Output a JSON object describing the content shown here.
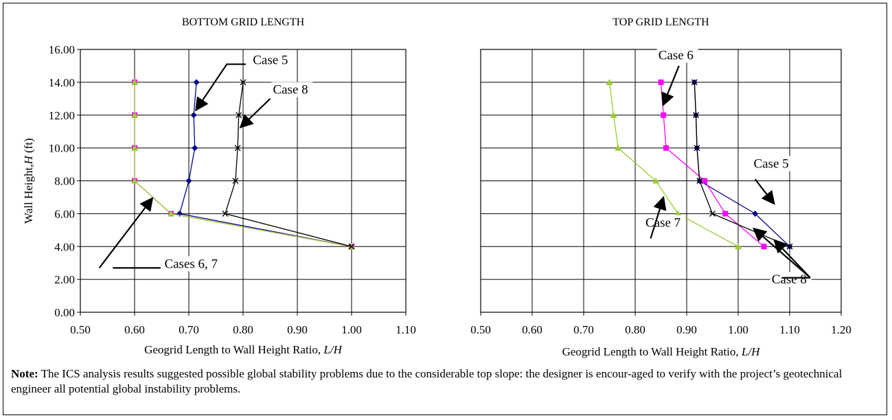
{
  "note": {
    "label": "Note:",
    "text": "The ICS analysis results suggested possible global stability problems due to the considerable top slope: the designer is encour-aged to verify with the project’s geotechnical engineer all potential global instability problems."
  },
  "chart_data": [
    {
      "type": "line",
      "title": "BOTTOM GRID LENGTH",
      "xlabel": "Geogrid Length to Wall Height Ratio, L/H",
      "ylabel": "Wall Height,H (ft)",
      "xlim": [
        0.5,
        1.1
      ],
      "ylim": [
        0,
        16
      ],
      "xticks": [
        "0.50",
        "0.60",
        "0.70",
        "0.80",
        "0.90",
        "1.00",
        "1.10"
      ],
      "yticks": [
        "0.00",
        "2.00",
        "4.00",
        "6.00",
        "8.00",
        "10.00",
        "12.00",
        "14.00",
        "16.00"
      ],
      "grid": true,
      "series": [
        {
          "color": "#00008b",
          "marker": "diamond",
          "points": [
            [
              1.0,
              4
            ],
            [
              0.683,
              6
            ],
            [
              0.7,
              8
            ],
            [
              0.711,
              10
            ],
            [
              0.709,
              12
            ],
            [
              0.714,
              14
            ]
          ]
        },
        {
          "color": "#ff00ff",
          "marker": "square",
          "points": [
            [
              1.0,
              4
            ],
            [
              0.667,
              6
            ],
            [
              0.6,
              8
            ],
            [
              0.6,
              10
            ],
            [
              0.6,
              12
            ],
            [
              0.6,
              14
            ]
          ]
        },
        {
          "color": "#9acd32",
          "marker": "triangle",
          "points": [
            [
              1.0,
              4
            ],
            [
              0.667,
              6
            ],
            [
              0.6,
              8
            ],
            [
              0.6,
              10
            ],
            [
              0.6,
              12
            ],
            [
              0.6,
              14
            ]
          ]
        },
        {
          "color": "#000000",
          "marker": "x",
          "points": [
            [
              1.0,
              4
            ],
            [
              0.767,
              6
            ],
            [
              0.786,
              8
            ],
            [
              0.79,
              10
            ],
            [
              0.792,
              12
            ],
            [
              0.8,
              14
            ]
          ]
        }
      ],
      "annotations": [
        {
          "text": "Case 5",
          "text_at": [
            0.818,
            15.1
          ],
          "line": [
            [
              0.805,
              15.1
            ],
            [
              0.77,
              15.1
            ],
            [
              0.713,
              12.3
            ]
          ]
        },
        {
          "text": "Case 8",
          "text_at": [
            0.855,
            13.3
          ],
          "line": [
            [
              0.85,
              13.0
            ],
            [
              0.795,
              11.25
            ]
          ]
        },
        {
          "text": "Cases 6, 7",
          "text_at": [
            0.655,
            2.7
          ],
          "line": [
            [
              0.648,
              2.7
            ],
            [
              0.56,
              2.7
            ],
            [
              0.535,
              2.7
            ],
            [
              0.633,
              6.95
            ]
          ]
        }
      ]
    },
    {
      "type": "line",
      "title": "TOP GRID LENGTH",
      "xlabel": "Geogrid Length to Wall Height Ratio, L/H",
      "ylabel": "",
      "xlim": [
        0.5,
        1.2
      ],
      "ylim": [
        0,
        16
      ],
      "xticks": [
        "0.50",
        "0.60",
        "0.70",
        "0.80",
        "0.90",
        "1.00",
        "1.10",
        "1.20"
      ],
      "yticks": [],
      "grid": true,
      "series": [
        {
          "color": "#00008b",
          "marker": "diamond",
          "points": [
            [
              1.1,
              4
            ],
            [
              1.033,
              6
            ],
            [
              0.925,
              8
            ],
            [
              0.92,
              10
            ],
            [
              0.918,
              12
            ],
            [
              0.915,
              14
            ]
          ]
        },
        {
          "color": "#ff00ff",
          "marker": "square",
          "points": [
            [
              1.05,
              4
            ],
            [
              0.975,
              6
            ],
            [
              0.935,
              8
            ],
            [
              0.86,
              10
            ],
            [
              0.855,
              12
            ],
            [
              0.85,
              14
            ]
          ]
        },
        {
          "color": "#9acd32",
          "marker": "triangle",
          "points": [
            [
              1.0,
              4
            ],
            [
              0.883,
              6
            ],
            [
              0.84,
              8
            ],
            [
              0.767,
              10
            ],
            [
              0.758,
              12
            ],
            [
              0.75,
              14
            ]
          ]
        },
        {
          "color": "#000000",
          "marker": "x",
          "points": [
            [
              1.1,
              4
            ],
            [
              0.95,
              6
            ],
            [
              0.925,
              8
            ],
            [
              0.92,
              10
            ],
            [
              0.918,
              12
            ],
            [
              0.915,
              14
            ]
          ]
        }
      ],
      "annotations": [
        {
          "text": "Case 6",
          "text_at": [
            0.845,
            15.4
          ],
          "line": [
            [
              0.885,
              15.0
            ],
            [
              0.854,
              12.6
            ]
          ]
        },
        {
          "text": "Case 5",
          "text_at": [
            1.03,
            8.8
          ],
          "line": [
            [
              1.033,
              8.1
            ],
            [
              1.045,
              7.6
            ],
            [
              1.07,
              6.6
            ]
          ]
        },
        {
          "text": "Case 7",
          "text_at": [
            0.82,
            5.2
          ],
          "line": [
            [
              0.83,
              4.5
            ],
            [
              0.855,
              7.0
            ]
          ]
        },
        {
          "text": "Case 8",
          "text_at": [
            1.065,
            1.75
          ],
          "line": [
            [
              1.085,
              2.1
            ],
            [
              1.14,
              2.1
            ],
            [
              1.07,
              4.4
            ],
            [
              1.14,
              2.1
            ],
            [
              1.03,
              5.1
            ]
          ]
        }
      ]
    }
  ]
}
